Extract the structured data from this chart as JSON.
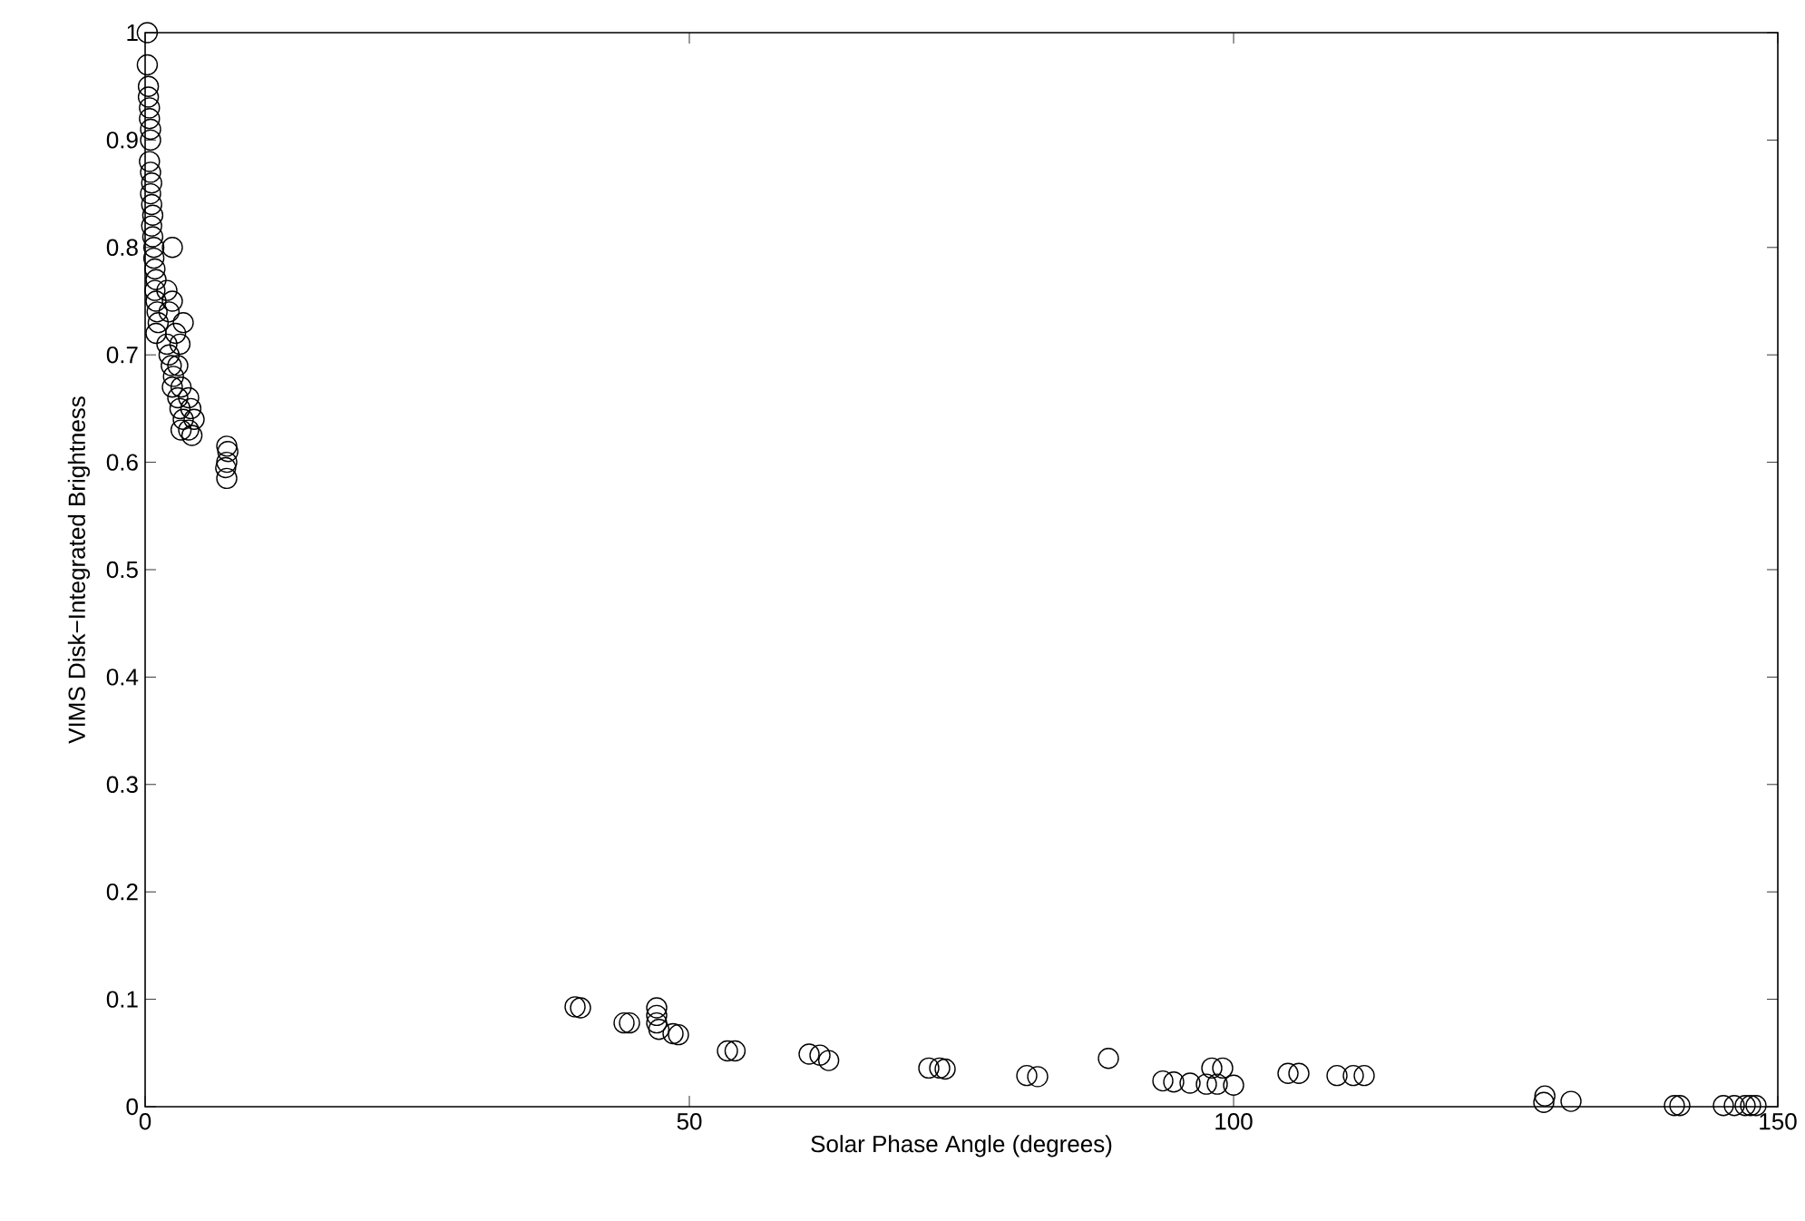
{
  "chart_data": {
    "type": "scatter",
    "xlabel": "Solar Phase Angle (degrees)",
    "ylabel": "VIMS Disk−Integrated Brightness",
    "xlim": [
      0,
      150
    ],
    "ylim": [
      0,
      1
    ],
    "xticks": [
      0,
      50,
      100,
      150
    ],
    "yticks": [
      0,
      0.1,
      0.2,
      0.3,
      0.4,
      0.5,
      0.6,
      0.7,
      0.8,
      0.9,
      1
    ],
    "marker": "circle",
    "grid": false,
    "series": [
      {
        "color": "#000000",
        "x": [
          0.2,
          0.2,
          0.3,
          0.3,
          0.4,
          0.4,
          0.5,
          0.5,
          0.4,
          0.5,
          0.6,
          0.5,
          0.6,
          0.7,
          0.6,
          0.7,
          0.8,
          0.8,
          0.9,
          1.0,
          0.9,
          1.0,
          1.1,
          1.2,
          1.0,
          2.5,
          2.0,
          2.5,
          2.2,
          2.8,
          2.0,
          2.2,
          2.4,
          2.6,
          2.5,
          3.5,
          3.2,
          3.0,
          3.3,
          3.0,
          3.2,
          3.5,
          3.3,
          4.0,
          4.2,
          4.5,
          4.0,
          4.3,
          7.5,
          7.6,
          7.5,
          7.4,
          7.5,
          39.5,
          40,
          44,
          44.5,
          47,
          47,
          47,
          47.2,
          48.5,
          49,
          53.5,
          54.2,
          61,
          62,
          62.8,
          72,
          73,
          73.5,
          81,
          82,
          88.5,
          93.5,
          94.5,
          96,
          97.5,
          98.5,
          100,
          98,
          99,
          105,
          106,
          109.5,
          111,
          112,
          128.5,
          128.6,
          131,
          140.5,
          141,
          145,
          146,
          147,
          147.5,
          148
        ],
        "values": [
          1.0,
          0.97,
          0.95,
          0.94,
          0.93,
          0.92,
          0.91,
          0.9,
          0.88,
          0.87,
          0.86,
          0.85,
          0.84,
          0.83,
          0.82,
          0.81,
          0.8,
          0.79,
          0.78,
          0.77,
          0.76,
          0.75,
          0.74,
          0.73,
          0.72,
          0.8,
          0.76,
          0.75,
          0.74,
          0.72,
          0.71,
          0.7,
          0.69,
          0.68,
          0.67,
          0.73,
          0.71,
          0.69,
          0.67,
          0.66,
          0.65,
          0.64,
          0.63,
          0.66,
          0.65,
          0.64,
          0.63,
          0.625,
          0.615,
          0.61,
          0.6,
          0.595,
          0.585,
          0.093,
          0.092,
          0.078,
          0.078,
          0.092,
          0.085,
          0.078,
          0.072,
          0.068,
          0.067,
          0.052,
          0.052,
          0.049,
          0.048,
          0.043,
          0.036,
          0.036,
          0.035,
          0.029,
          0.028,
          0.045,
          0.024,
          0.023,
          0.022,
          0.021,
          0.021,
          0.02,
          0.036,
          0.036,
          0.031,
          0.031,
          0.029,
          0.029,
          0.029,
          0.004,
          0.01,
          0.005,
          0.001,
          0.001,
          0.001,
          0.001,
          0.001,
          0.001,
          0.001
        ]
      }
    ]
  }
}
